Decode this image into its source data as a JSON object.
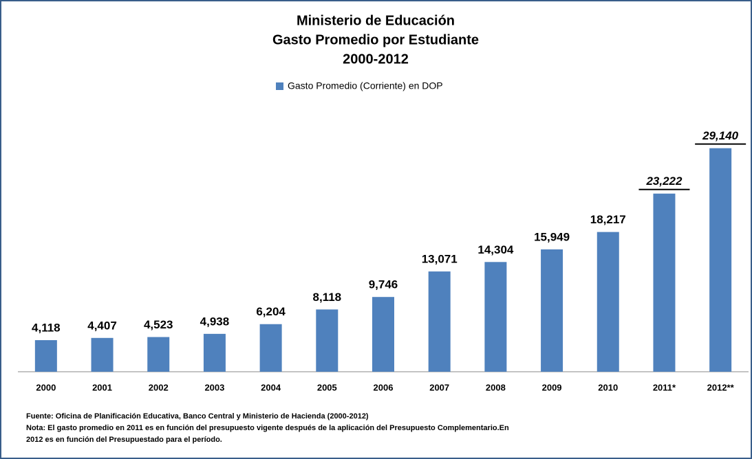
{
  "chart_data": {
    "type": "bar",
    "title": [
      "Ministerio de Educación",
      "Gasto Promedio por Estudiante",
      "2000-2012"
    ],
    "categories": [
      "2000",
      "2001",
      "2002",
      "2003",
      "2004",
      "2005",
      "2006",
      "2007",
      "2008",
      "2009",
      "2010",
      "2011*",
      "2012**"
    ],
    "series": [
      {
        "name": "Gasto Promedio (Corriente) en DOP",
        "color": "#4f81bd",
        "values": [
          4118,
          4407,
          4523,
          4938,
          6204,
          8118,
          9746,
          13071,
          14304,
          15949,
          18217,
          23222,
          29140
        ],
        "value_labels": [
          "4,118",
          "4,407",
          "4,523",
          "4,938",
          "6,204",
          "8,118",
          "9,746",
          "13,071",
          "14,304",
          "15,949",
          "18,217",
          "23,222",
          "29,140"
        ]
      }
    ],
    "ylim": [
      0,
      33500
    ],
    "legend": "top",
    "footnotes": [
      "Fuente: Oficina de Planificación Educativa, Banco Central y Ministerio de Hacienda (2000-2012)",
      "Nota: El  gasto promedio en 2011  es en función del presupuesto vigente después de la aplicación del Presupuesto Complementario.En",
      "2012 es en función del Presupuestado para el período."
    ]
  }
}
